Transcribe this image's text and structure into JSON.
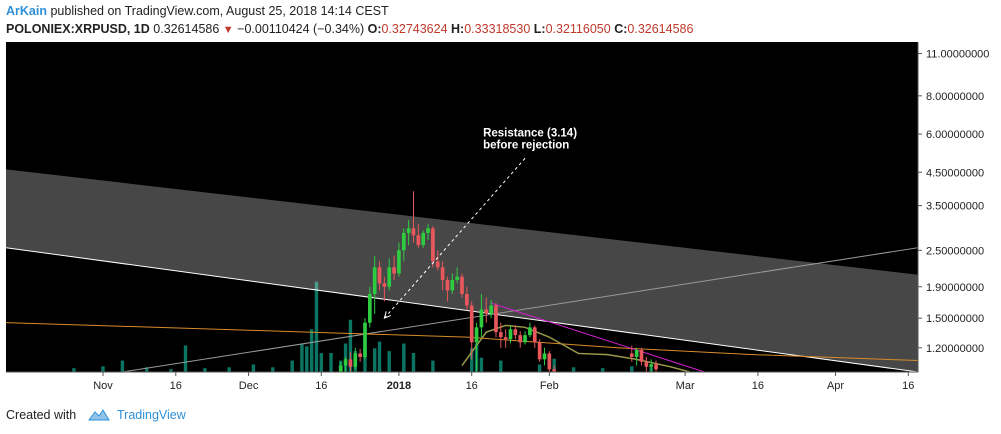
{
  "header": {
    "author": "ArKain",
    "published": "published on TradingView.com, August 25, 2018 14:14 CEST",
    "symbol": "POLONIEX:XRPUSD, 1D",
    "last": "0.32614586",
    "change": "−0.00110424 (−0.34%)",
    "o_label": "O:",
    "o_value": "0.32743624",
    "h_label": "H:",
    "h_value": "0.33318530",
    "l_label": "L:",
    "l_value": "0.32116050",
    "c_label": "C:",
    "c_value": "0.32614586",
    "down_icon": "triangle-down-icon"
  },
  "footer": {
    "created_with": "Created with",
    "brand": "TradingView",
    "logo_icon": "tradingview-cloud-icon"
  },
  "colors": {
    "background": "#000000",
    "bull": "#2ecc40",
    "bear": "#e8575c",
    "volume": "#0b8a73",
    "channel_fill": "#ffffff",
    "support_line": "#ffffff",
    "orange_ma": "#d98c2b",
    "olive_ma": "#9a9a4a",
    "magenta_trend": "#d21fd0",
    "brand_blue": "#2f8fd8"
  },
  "chart_data": {
    "type": "candlestick",
    "symbol": "POLONIEX:XRPUSD",
    "interval": "1D",
    "y_scale": "log",
    "ylim": [
      1.0,
      12.0
    ],
    "y_tick_labels": [
      "11.00000000",
      "8.00000000",
      "6.00000000",
      "4.50000000",
      "3.50000000",
      "2.50000000",
      "1.90000000",
      "1.50000000",
      "1.20000000"
    ],
    "y_ticks": [
      11.0,
      8.0,
      6.0,
      4.5,
      3.5,
      2.5,
      1.9,
      1.5,
      1.2
    ],
    "x_tick_labels": [
      "Nov",
      "16",
      "Dec",
      "16",
      "2018",
      "16",
      "Feb",
      "Mar",
      "16",
      "Apr",
      "16"
    ],
    "x_ticks": [
      "2017-11-01",
      "2017-11-16",
      "2017-12-01",
      "2017-12-16",
      "2018-01-01",
      "2018-01-16",
      "2018-02-01",
      "2018-03-01",
      "2018-03-16",
      "2018-04-01",
      "2018-04-16"
    ],
    "x_range": [
      "2017-10-12",
      "2018-04-18"
    ],
    "annotation": {
      "lines": [
        "Resistance (3.14)",
        "before rejection"
      ],
      "from_date": "2018-01-27",
      "from_value": 5.0,
      "to_date": "2017-12-29",
      "to_value": 1.5
    },
    "candles": [
      {
        "date": "2017-12-20",
        "o": 1.0,
        "h": 1.08,
        "l": 0.95,
        "c": 1.05
      },
      {
        "date": "2017-12-21",
        "o": 1.05,
        "h": 1.12,
        "l": 1.0,
        "c": 1.1
      },
      {
        "date": "2017-12-22",
        "o": 1.1,
        "h": 1.16,
        "l": 0.98,
        "c": 1.04
      },
      {
        "date": "2017-12-23",
        "o": 1.04,
        "h": 1.2,
        "l": 1.02,
        "c": 1.15
      },
      {
        "date": "2017-12-24",
        "o": 1.15,
        "h": 1.19,
        "l": 1.08,
        "c": 1.12
      },
      {
        "date": "2017-12-25",
        "o": 1.12,
        "h": 1.5,
        "l": 1.1,
        "c": 1.45
      },
      {
        "date": "2017-12-26",
        "o": 1.45,
        "h": 1.9,
        "l": 1.4,
        "c": 1.8
      },
      {
        "date": "2017-12-27",
        "o": 1.8,
        "h": 2.4,
        "l": 1.55,
        "c": 2.2
      },
      {
        "date": "2017-12-28",
        "o": 2.2,
        "h": 2.3,
        "l": 1.85,
        "c": 1.95
      },
      {
        "date": "2017-12-29",
        "o": 1.95,
        "h": 2.05,
        "l": 1.7,
        "c": 1.9
      },
      {
        "date": "2017-12-30",
        "o": 1.9,
        "h": 2.35,
        "l": 1.85,
        "c": 2.2
      },
      {
        "date": "2017-12-31",
        "o": 2.2,
        "h": 2.4,
        "l": 2.0,
        "c": 2.1
      },
      {
        "date": "2018-01-01",
        "o": 2.1,
        "h": 2.65,
        "l": 2.05,
        "c": 2.5
      },
      {
        "date": "2018-01-02",
        "o": 2.5,
        "h": 2.95,
        "l": 2.3,
        "c": 2.85
      },
      {
        "date": "2018-01-03",
        "o": 2.85,
        "h": 3.14,
        "l": 2.6,
        "c": 2.95
      },
      {
        "date": "2018-01-04",
        "o": 2.95,
        "h": 3.9,
        "l": 2.65,
        "c": 2.8
      },
      {
        "date": "2018-01-05",
        "o": 2.8,
        "h": 3.05,
        "l": 2.55,
        "c": 2.6
      },
      {
        "date": "2018-01-06",
        "o": 2.6,
        "h": 2.9,
        "l": 2.55,
        "c": 2.85
      },
      {
        "date": "2018-01-07",
        "o": 2.85,
        "h": 3.05,
        "l": 2.7,
        "c": 2.95
      },
      {
        "date": "2018-01-08",
        "o": 2.95,
        "h": 3.0,
        "l": 2.2,
        "c": 2.3
      },
      {
        "date": "2018-01-09",
        "o": 2.3,
        "h": 2.5,
        "l": 2.15,
        "c": 2.2
      },
      {
        "date": "2018-01-10",
        "o": 2.2,
        "h": 2.3,
        "l": 1.85,
        "c": 2.0
      },
      {
        "date": "2018-01-11",
        "o": 2.0,
        "h": 2.05,
        "l": 1.7,
        "c": 1.85
      },
      {
        "date": "2018-01-12",
        "o": 1.85,
        "h": 2.1,
        "l": 1.8,
        "c": 2.0
      },
      {
        "date": "2018-01-13",
        "o": 2.0,
        "h": 2.2,
        "l": 1.95,
        "c": 2.05
      },
      {
        "date": "2018-01-14",
        "o": 2.05,
        "h": 2.1,
        "l": 1.75,
        "c": 1.8
      },
      {
        "date": "2018-01-15",
        "o": 1.8,
        "h": 1.9,
        "l": 1.6,
        "c": 1.65
      },
      {
        "date": "2018-01-16",
        "o": 1.65,
        "h": 1.7,
        "l": 1.1,
        "c": 1.25
      },
      {
        "date": "2018-01-17",
        "o": 1.25,
        "h": 1.45,
        "l": 1.0,
        "c": 1.4
      },
      {
        "date": "2018-01-18",
        "o": 1.4,
        "h": 1.8,
        "l": 1.3,
        "c": 1.6
      },
      {
        "date": "2018-01-19",
        "o": 1.6,
        "h": 1.75,
        "l": 1.45,
        "c": 1.55
      },
      {
        "date": "2018-01-20",
        "o": 1.55,
        "h": 1.72,
        "l": 1.5,
        "c": 1.65
      },
      {
        "date": "2018-01-21",
        "o": 1.65,
        "h": 1.68,
        "l": 1.3,
        "c": 1.35
      },
      {
        "date": "2018-01-22",
        "o": 1.35,
        "h": 1.45,
        "l": 1.2,
        "c": 1.3
      },
      {
        "date": "2018-01-23",
        "o": 1.3,
        "h": 1.38,
        "l": 1.2,
        "c": 1.28
      },
      {
        "date": "2018-01-24",
        "o": 1.28,
        "h": 1.42,
        "l": 1.24,
        "c": 1.38
      },
      {
        "date": "2018-01-25",
        "o": 1.38,
        "h": 1.42,
        "l": 1.28,
        "c": 1.32
      },
      {
        "date": "2018-01-26",
        "o": 1.32,
        "h": 1.36,
        "l": 1.2,
        "c": 1.25
      },
      {
        "date": "2018-01-27",
        "o": 1.25,
        "h": 1.36,
        "l": 1.23,
        "c": 1.32
      },
      {
        "date": "2018-01-28",
        "o": 1.32,
        "h": 1.45,
        "l": 1.3,
        "c": 1.4
      },
      {
        "date": "2018-01-29",
        "o": 1.4,
        "h": 1.42,
        "l": 1.2,
        "c": 1.25
      },
      {
        "date": "2018-01-30",
        "o": 1.25,
        "h": 1.28,
        "l": 1.08,
        "c": 1.1
      },
      {
        "date": "2018-01-31",
        "o": 1.1,
        "h": 1.2,
        "l": 1.05,
        "c": 1.15
      },
      {
        "date": "2018-02-01",
        "o": 1.15,
        "h": 1.17,
        "l": 1.0,
        "c": 1.02
      },
      {
        "date": "2018-02-02",
        "o": 1.02,
        "h": 1.05,
        "l": 0.8,
        "c": 0.95
      },
      {
        "date": "2018-02-18",
        "o": 1.15,
        "h": 1.22,
        "l": 1.08,
        "c": 1.12
      },
      {
        "date": "2018-02-19",
        "o": 1.12,
        "h": 1.2,
        "l": 1.05,
        "c": 1.18
      },
      {
        "date": "2018-02-20",
        "o": 1.18,
        "h": 1.2,
        "l": 1.05,
        "c": 1.08
      },
      {
        "date": "2018-02-21",
        "o": 1.08,
        "h": 1.12,
        "l": 1.0,
        "c": 1.04
      },
      {
        "date": "2018-02-22",
        "o": 1.04,
        "h": 1.1,
        "l": 0.98,
        "c": 1.06
      },
      {
        "date": "2018-02-23",
        "o": 1.06,
        "h": 1.09,
        "l": 1.0,
        "c": 1.02
      }
    ],
    "volume": [
      {
        "date": "2017-10-26",
        "v": 0.04
      },
      {
        "date": "2017-11-01",
        "v": 0.06
      },
      {
        "date": "2017-11-05",
        "v": 0.12
      },
      {
        "date": "2017-11-10",
        "v": 0.05
      },
      {
        "date": "2017-11-15",
        "v": 0.03
      },
      {
        "date": "2017-11-18",
        "v": 0.28
      },
      {
        "date": "2017-11-22",
        "v": 0.04
      },
      {
        "date": "2017-11-27",
        "v": 0.05
      },
      {
        "date": "2017-12-02",
        "v": 0.08
      },
      {
        "date": "2017-12-06",
        "v": 0.05
      },
      {
        "date": "2017-12-10",
        "v": 0.12
      },
      {
        "date": "2017-12-12",
        "v": 0.3
      },
      {
        "date": "2017-12-13",
        "v": 0.27
      },
      {
        "date": "2017-12-14",
        "v": 0.45
      },
      {
        "date": "2017-12-15",
        "v": 0.95
      },
      {
        "date": "2017-12-16",
        "v": 0.2
      },
      {
        "date": "2017-12-18",
        "v": 0.2
      },
      {
        "date": "2017-12-20",
        "v": 0.12
      },
      {
        "date": "2017-12-21",
        "v": 0.3
      },
      {
        "date": "2017-12-22",
        "v": 0.55
      },
      {
        "date": "2017-12-23",
        "v": 0.22
      },
      {
        "date": "2017-12-25",
        "v": 0.25
      },
      {
        "date": "2017-12-27",
        "v": 0.25
      },
      {
        "date": "2017-12-28",
        "v": 0.32
      },
      {
        "date": "2017-12-30",
        "v": 0.22
      },
      {
        "date": "2018-01-02",
        "v": 0.3
      },
      {
        "date": "2018-01-04",
        "v": 0.2
      },
      {
        "date": "2018-01-08",
        "v": 0.12
      },
      {
        "date": "2018-01-16",
        "v": 0.25
      },
      {
        "date": "2018-01-17",
        "v": 0.3
      },
      {
        "date": "2018-01-18",
        "v": 0.15
      },
      {
        "date": "2018-01-22",
        "v": 0.12
      },
      {
        "date": "2018-01-30",
        "v": 0.08
      },
      {
        "date": "2018-02-02",
        "v": 0.14
      },
      {
        "date": "2018-02-06",
        "v": 0.05
      },
      {
        "date": "2018-02-12",
        "v": 0.04
      },
      {
        "date": "2018-02-18",
        "v": 0.06
      },
      {
        "date": "2018-02-22",
        "v": 0.05
      }
    ],
    "drawings": [
      {
        "name": "channel-upper-band",
        "kind": "band",
        "top": [
          [
            "2017-10-12",
            4.6
          ],
          [
            "2018-04-18",
            2.08
          ]
        ],
        "bottom": [
          [
            "2017-10-12",
            2.55
          ],
          [
            "2018-04-18",
            0.92
          ]
        ]
      },
      {
        "name": "support-line",
        "kind": "line",
        "pts": [
          [
            "2017-10-12",
            2.55
          ],
          [
            "2018-04-18",
            0.92
          ]
        ]
      },
      {
        "name": "uptrend-line",
        "kind": "line",
        "pts": [
          [
            "2017-11-05",
            0.96
          ],
          [
            "2018-04-18",
            2.55
          ]
        ]
      },
      {
        "name": "orange-moving-average",
        "kind": "line",
        "pts": [
          [
            "2017-10-12",
            1.45
          ],
          [
            "2017-12-01",
            1.37
          ],
          [
            "2018-01-15",
            1.3
          ],
          [
            "2018-02-15",
            1.2
          ],
          [
            "2018-03-15",
            1.14
          ],
          [
            "2018-04-18",
            1.09
          ]
        ]
      },
      {
        "name": "magenta-trendline",
        "kind": "line",
        "pts": [
          [
            "2018-01-20",
            1.68
          ],
          [
            "2018-03-05",
            1.0
          ]
        ]
      },
      {
        "name": "olive-moving-average",
        "kind": "line",
        "pts": [
          [
            "2018-01-14",
            1.05
          ],
          [
            "2018-01-19",
            1.35
          ],
          [
            "2018-01-23",
            1.42
          ],
          [
            "2018-01-27",
            1.4
          ],
          [
            "2018-02-01",
            1.3
          ],
          [
            "2018-02-07",
            1.15
          ],
          [
            "2018-02-13",
            1.14
          ],
          [
            "2018-02-19",
            1.1
          ],
          [
            "2018-02-26",
            1.04
          ],
          [
            "2018-03-02",
            1.0
          ]
        ]
      }
    ]
  }
}
